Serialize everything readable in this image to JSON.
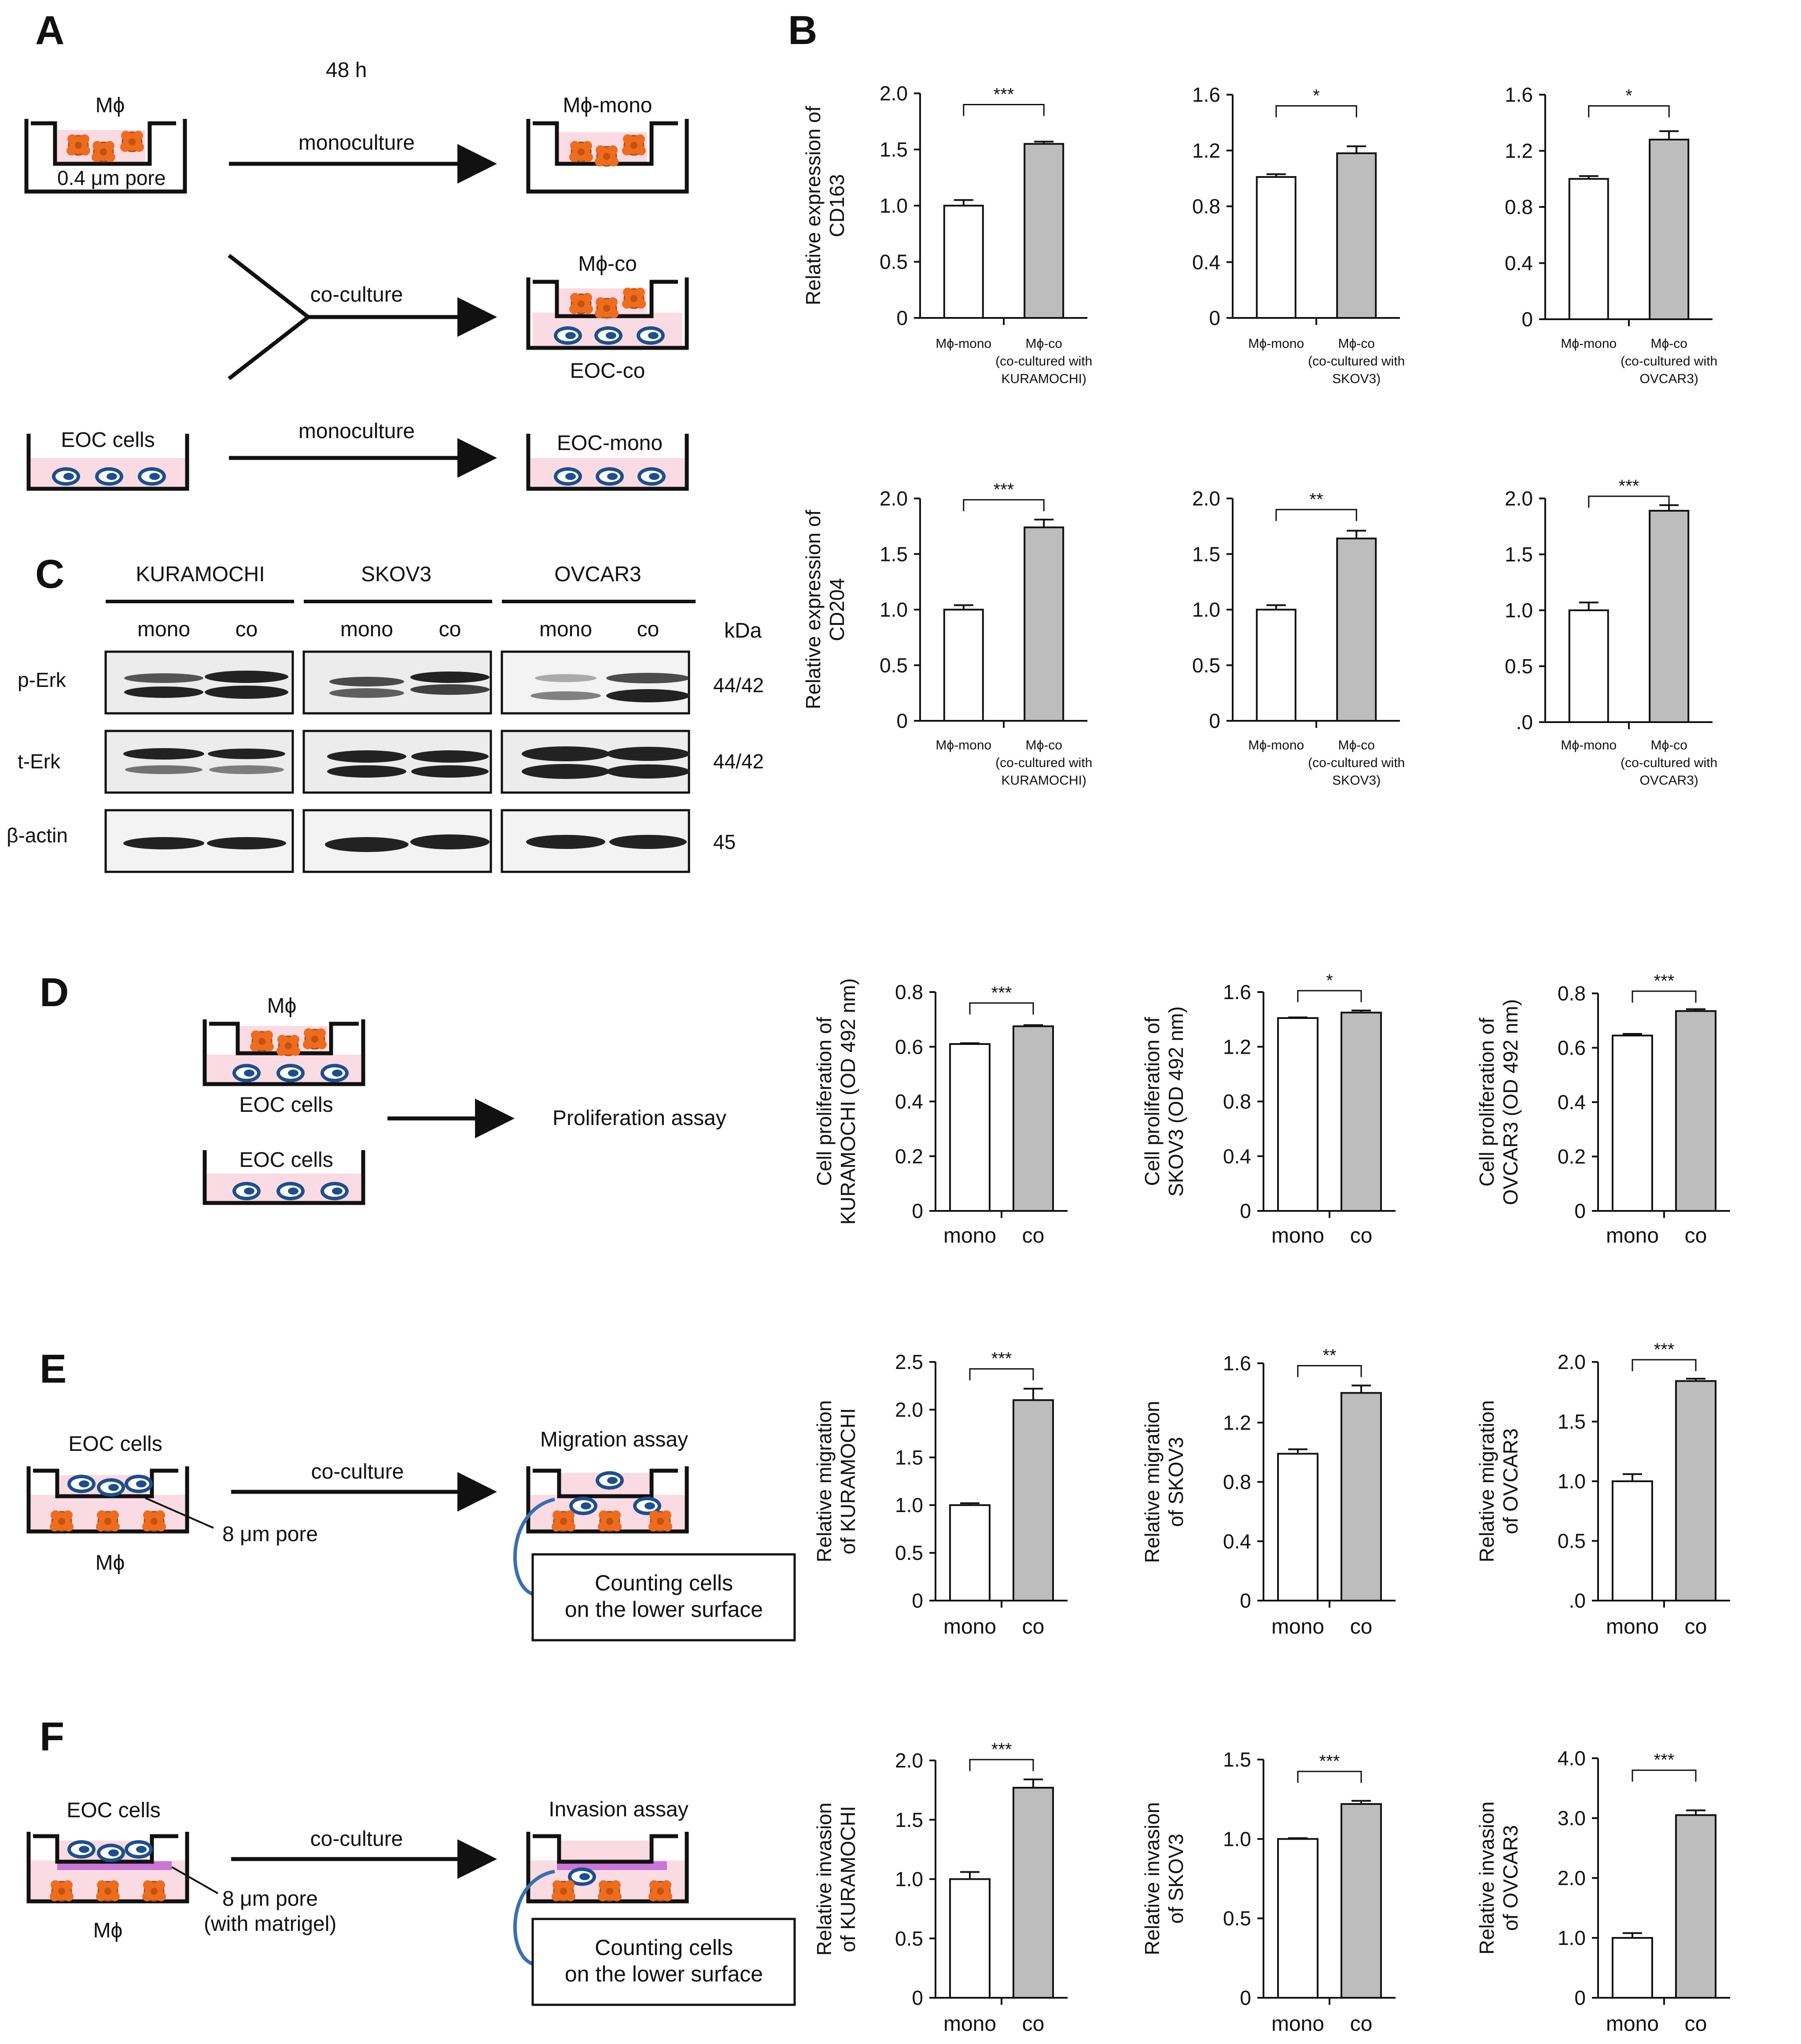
{
  "figure": {
    "panel_labels": [
      "A",
      "B",
      "C",
      "D",
      "E",
      "F"
    ],
    "colors": {
      "ink": "#111111",
      "medium": "#fbdbe3",
      "macrophage": "#ec6d20",
      "eoc_cell": "#1f4e8c",
      "bar_co": "#bdbdbd",
      "bar_mono": "#ffffff",
      "matrigel": "#c877d6",
      "callout": "#3a6fb0"
    }
  },
  "panel_a": {
    "time": "48 h",
    "mphi": "Mϕ",
    "pore": "0.4 μm pore",
    "monoculture_top": "monoculture",
    "mphi_mono": "Mϕ-mono",
    "coculture": "co-culture",
    "mphi_co": "Mϕ-co",
    "eoc_co": "EOC-co",
    "eoc_cells": "EOC cells",
    "monoculture_bottom": "monoculture",
    "eoc_mono": "EOC-mono"
  },
  "panel_c": {
    "cell_lines": [
      "KURAMOCHI",
      "SKOV3",
      "OVCAR3"
    ],
    "lanes": [
      "mono",
      "co"
    ],
    "kda_header": "kDa",
    "rows": [
      {
        "label": "p-Erk",
        "kda": "44/42"
      },
      {
        "label": "t-Erk",
        "kda": "44/42"
      },
      {
        "label": "β-actin",
        "kda": "45"
      }
    ]
  },
  "panel_d": {
    "mphi": "Mϕ",
    "eoc_cells_1": "EOC cells",
    "eoc_cells_2": "EOC cells",
    "assay": "Proliferation assay"
  },
  "panel_e": {
    "eoc_cells": "EOC cells",
    "coculture": "co-culture",
    "assay": "Migration assay",
    "pore": "8 μm pore",
    "mphi": "Mϕ",
    "counting_1": "Counting cells",
    "counting_2": "on the lower surface"
  },
  "panel_f": {
    "eoc_cells": "EOC cells",
    "coculture": "co-culture",
    "assay": "Invasion assay",
    "pore": "8 μm pore",
    "pore_note": "(with matrigel)",
    "mphi": "Mϕ",
    "counting_1": "Counting cells",
    "counting_2": "on the lower surface"
  },
  "chart_data": [
    {
      "id": "cd163_kuramochi",
      "type": "bar",
      "ylabel": [
        "Relative expression of",
        "CD163"
      ],
      "yticks": [
        "0",
        "0.5",
        "1.0",
        "1.5",
        "2.0"
      ],
      "ylim": [
        0,
        2.0
      ],
      "categories": [
        [
          "Mϕ-mono"
        ],
        [
          "Mϕ-co",
          "(co-cultured with",
          "KURAMOCHI)"
        ]
      ],
      "values": [
        1.0,
        1.55
      ],
      "errors": [
        0.05,
        0.02
      ],
      "significance": "***"
    },
    {
      "id": "cd163_skov3",
      "type": "bar",
      "ylabel": [],
      "yticks": [
        "0",
        "0.4",
        "0.8",
        "1.2",
        "1.6"
      ],
      "ylim": [
        0,
        1.6
      ],
      "categories": [
        [
          "Mϕ-mono"
        ],
        [
          "Mϕ-co",
          "(co-cultured with",
          "SKOV3)"
        ]
      ],
      "values": [
        1.01,
        1.18
      ],
      "errors": [
        0.02,
        0.05
      ],
      "significance": "*"
    },
    {
      "id": "cd163_ovcar3",
      "type": "bar",
      "ylabel": [],
      "yticks": [
        "0",
        "0.4",
        "0.8",
        "1.2",
        "1.6"
      ],
      "ylim": [
        0,
        1.6
      ],
      "categories": [
        [
          "Mϕ-mono"
        ],
        [
          "Mϕ-co",
          "(co-cultured with",
          "OVCAR3)"
        ]
      ],
      "values": [
        1.0,
        1.28
      ],
      "errors": [
        0.02,
        0.06
      ],
      "significance": "*"
    },
    {
      "id": "cd204_kuramochi",
      "type": "bar",
      "ylabel": [
        "Relative expression of",
        "CD204"
      ],
      "yticks": [
        "0",
        "0.5",
        "1.0",
        "1.5",
        "2.0"
      ],
      "ylim": [
        0,
        2.0
      ],
      "categories": [
        [
          "Mϕ-mono"
        ],
        [
          "Mϕ-co",
          "(co-cultured with",
          "KURAMOCHI)"
        ]
      ],
      "values": [
        1.0,
        1.74
      ],
      "errors": [
        0.04,
        0.07
      ],
      "significance": "***"
    },
    {
      "id": "cd204_skov3",
      "type": "bar",
      "ylabel": [],
      "yticks": [
        "0",
        "0.5",
        "1.0",
        "1.5",
        "2.0"
      ],
      "ylim": [
        0,
        2.0
      ],
      "categories": [
        [
          "Mϕ-mono"
        ],
        [
          "Mϕ-co",
          "(co-cultured with",
          "SKOV3)"
        ]
      ],
      "values": [
        1.0,
        1.64
      ],
      "errors": [
        0.04,
        0.07
      ],
      "significance": "**"
    },
    {
      "id": "cd204_ovcar3",
      "type": "bar",
      "ylabel": [],
      "yticks": [
        ".0",
        "0.5",
        "1.0",
        "1.5",
        "2.0"
      ],
      "ylim": [
        0,
        2.0
      ],
      "categories": [
        [
          "Mϕ-mono"
        ],
        [
          "Mϕ-co",
          "(co-cultured with",
          "OVCAR3)"
        ]
      ],
      "values": [
        1.0,
        1.89
      ],
      "errors": [
        0.07,
        0.05
      ],
      "significance": "***"
    },
    {
      "id": "prolif_kuramochi",
      "type": "bar",
      "ylabel": [
        "Cell proliferation of",
        "KURAMOCHI (OD 492 nm)"
      ],
      "yticks": [
        "0",
        "0.2",
        "0.4",
        "0.6",
        "0.8"
      ],
      "ylim": [
        0,
        0.8
      ],
      "categories": [
        [
          "mono"
        ],
        [
          "co"
        ]
      ],
      "values": [
        0.61,
        0.675
      ],
      "errors": [
        0.003,
        0.004
      ],
      "significance": "***"
    },
    {
      "id": "prolif_skov3",
      "type": "bar",
      "ylabel": [
        "Cell proliferation of",
        "SKOV3 (OD 492 nm)"
      ],
      "yticks": [
        "0",
        "0.4",
        "0.8",
        "1.2",
        "1.6"
      ],
      "ylim": [
        0,
        1.6
      ],
      "categories": [
        [
          "mono"
        ],
        [
          "co"
        ]
      ],
      "values": [
        1.41,
        1.45
      ],
      "errors": [
        0.005,
        0.015
      ],
      "significance": "*"
    },
    {
      "id": "prolif_ovcar3",
      "type": "bar",
      "ylabel": [
        "Cell proliferation of",
        "OVCAR3 (OD 492 nm)"
      ],
      "yticks": [
        "0",
        "0.2",
        "0.4",
        "0.6",
        "0.8"
      ],
      "ylim": [
        0,
        0.8
      ],
      "categories": [
        [
          "mono"
        ],
        [
          "co"
        ]
      ],
      "values": [
        0.645,
        0.735
      ],
      "errors": [
        0.006,
        0.007
      ],
      "significance": "***"
    },
    {
      "id": "migr_kuramochi",
      "type": "bar",
      "ylabel": [
        "Relative migration",
        "of KURAMOCHI"
      ],
      "yticks": [
        "0",
        "0.5",
        "1.0",
        "1.5",
        "2.0",
        "2.5"
      ],
      "ylim": [
        0,
        2.5
      ],
      "categories": [
        [
          "mono"
        ],
        [
          "co"
        ]
      ],
      "values": [
        1.0,
        2.1
      ],
      "errors": [
        0.02,
        0.12
      ],
      "significance": "***"
    },
    {
      "id": "migr_skov3",
      "type": "bar",
      "ylabel": [
        "Relative migration",
        "of SKOV3"
      ],
      "yticks": [
        "0",
        "0.4",
        "0.8",
        "1.2",
        "1.6"
      ],
      "ylim": [
        0,
        1.6
      ],
      "categories": [
        [
          "mono"
        ],
        [
          "co"
        ]
      ],
      "values": [
        0.99,
        1.4
      ],
      "errors": [
        0.03,
        0.05
      ],
      "significance": "**"
    },
    {
      "id": "migr_ovcar3",
      "type": "bar",
      "ylabel": [
        "Relative migration",
        "of OVCAR3"
      ],
      "yticks": [
        ".0",
        "0.5",
        "1.0",
        "1.5",
        "2.0"
      ],
      "ylim": [
        0,
        2.0
      ],
      "categories": [
        [
          "mono"
        ],
        [
          "co"
        ]
      ],
      "values": [
        1.0,
        1.84
      ],
      "errors": [
        0.06,
        0.02
      ],
      "significance": "***"
    },
    {
      "id": "inv_kuramochi",
      "type": "bar",
      "ylabel": [
        "Relative invasion",
        "of KURAMOCHI"
      ],
      "yticks": [
        "0",
        "0.5",
        "1.0",
        "1.5",
        "2.0"
      ],
      "ylim": [
        0,
        2.0
      ],
      "categories": [
        [
          "mono"
        ],
        [
          "co"
        ]
      ],
      "values": [
        1.0,
        1.77
      ],
      "errors": [
        0.06,
        0.07
      ],
      "significance": "***"
    },
    {
      "id": "inv_skov3",
      "type": "bar",
      "ylabel": [
        "Relative invasion",
        "of SKOV3"
      ],
      "yticks": [
        "0",
        "0.5",
        "1.0",
        "1.5"
      ],
      "ylim": [
        0,
        1.5
      ],
      "categories": [
        [
          "mono"
        ],
        [
          "co"
        ]
      ],
      "values": [
        1.0,
        1.22
      ],
      "errors": [
        0.005,
        0.02
      ],
      "significance": "***"
    },
    {
      "id": "inv_ovcar3",
      "type": "bar",
      "ylabel": [
        "Relative invasion",
        "of OVCAR3"
      ],
      "yticks": [
        "0",
        "1.0",
        "2.0",
        "3.0",
        "4.0"
      ],
      "ylim": [
        0,
        4.0
      ],
      "categories": [
        [
          "mono"
        ],
        [
          "co"
        ]
      ],
      "values": [
        1.0,
        3.05
      ],
      "errors": [
        0.08,
        0.08
      ],
      "significance": "***"
    }
  ]
}
